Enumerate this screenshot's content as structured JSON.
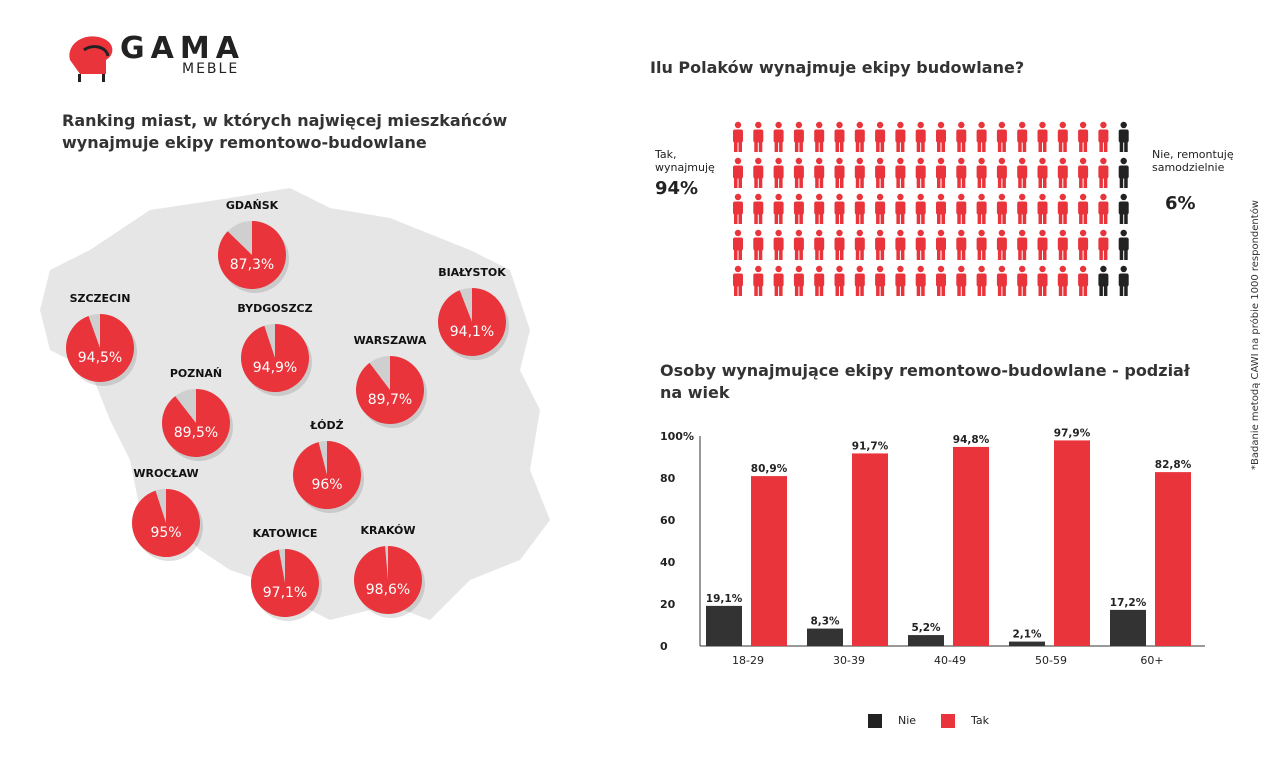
{
  "logo": {
    "main": "GAMA",
    "sub": "MEBLE"
  },
  "map_title": "Ranking miast, w których najwięcej mieszkańców wynajmuje ekipy remontowo-budowlane",
  "cities": [
    {
      "name": "GDAŃSK",
      "label": "87,3%",
      "value": 87.3
    },
    {
      "name": "BIAŁYSTOK",
      "label": "94,1%",
      "value": 94.1
    },
    {
      "name": "SZCZECIN",
      "label": "94,5%",
      "value": 94.5
    },
    {
      "name": "BYDGOSZCZ",
      "label": "94,9%",
      "value": 94.9
    },
    {
      "name": "WARSZAWA",
      "label": "89,7%",
      "value": 89.7
    },
    {
      "name": "POZNAŃ",
      "label": "89,5%",
      "value": 89.5
    },
    {
      "name": "ŁÓDŹ",
      "label": "96%",
      "value": 96
    },
    {
      "name": "WROCŁAW",
      "label": "95%",
      "value": 95
    },
    {
      "name": "KATOWICE",
      "label": "97,1%",
      "value": 97.1
    },
    {
      "name": "KRAKÓW",
      "label": "98,6%",
      "value": 98.6
    }
  ],
  "people": {
    "title": "Ilu Polaków wynajmuje ekipy budowlane?",
    "yes_label": "Tak, wynajmuję",
    "yes_value": "94%",
    "no_label": "Nie, remontuję samodzielnie",
    "no_value": "6%",
    "yes_count": 94,
    "no_count": 6
  },
  "colors": {
    "red": "#e8343a",
    "dark": "#333333",
    "pie_gray": "#cfcfcf",
    "map_gray": "#e6e6e6"
  },
  "chart_title": "Osoby wynajmujące ekipy remontowo-budowlane - podział na wiek",
  "note": "*Badanie metodą CAWI na próbie 1000 respondentów",
  "chart_data": {
    "type": "bar",
    "title": "Osoby wynajmujące ekipy remontowo-budowlane - podział na wiek",
    "categories": [
      "18-29",
      "30-39",
      "40-49",
      "50-59",
      "60+"
    ],
    "series": [
      {
        "name": "Nie",
        "values": [
          19.1,
          8.3,
          5.2,
          2.1,
          17.2
        ],
        "labels": [
          "19,1%",
          "8,3%",
          "5,2%",
          "2,1%",
          "17,2%"
        ],
        "color": "#333333"
      },
      {
        "name": "Tak",
        "values": [
          80.9,
          91.7,
          94.8,
          97.9,
          82.8
        ],
        "labels": [
          "80,9%",
          "91,7%",
          "94,8%",
          "97,9%",
          "82,8%"
        ],
        "color": "#e8343a"
      }
    ],
    "ylim": [
      0,
      100
    ],
    "yticks": [
      "0",
      "20",
      "40",
      "60",
      "80",
      "100%"
    ],
    "legend_position": "bottom"
  }
}
